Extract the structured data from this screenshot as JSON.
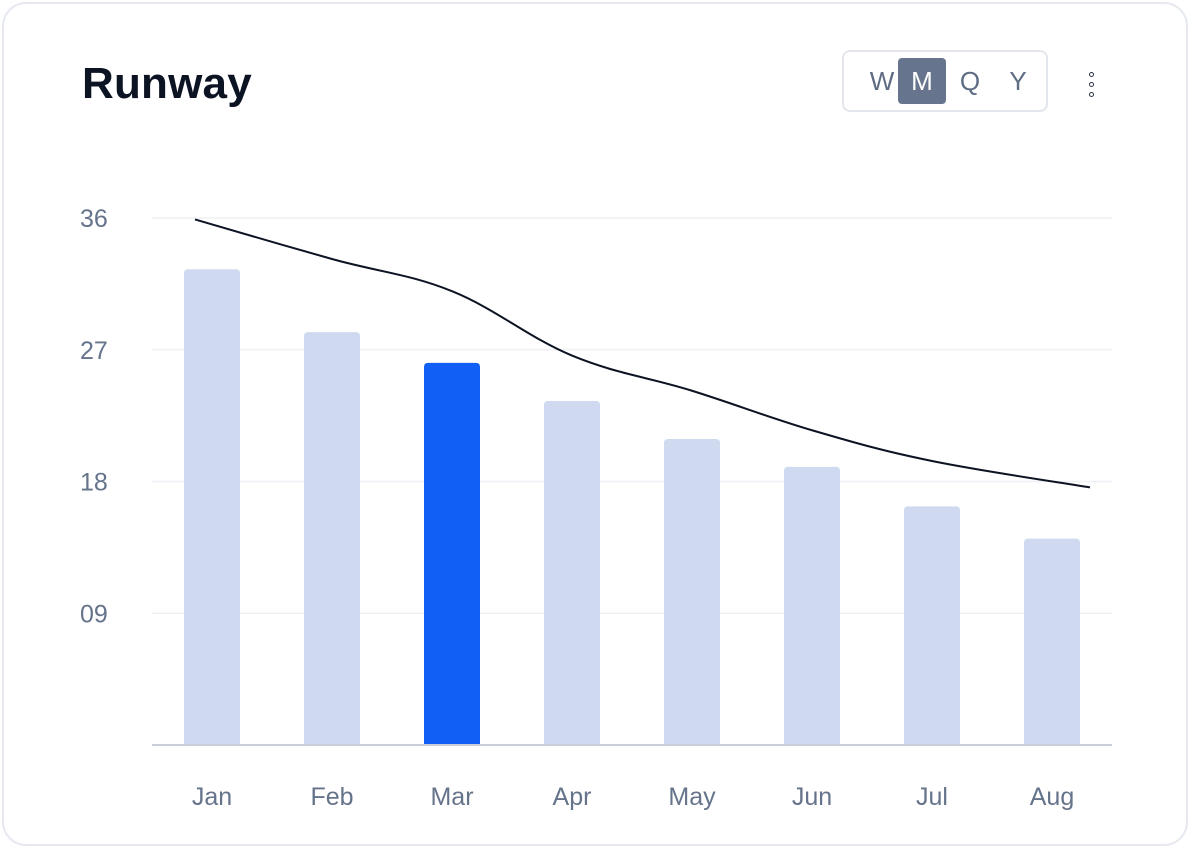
{
  "header": {
    "title": "Runway",
    "periods": [
      "W",
      "M",
      "Q",
      "Y"
    ],
    "active_period": "M",
    "menu_icon": "more-vertical-icon"
  },
  "colors": {
    "bar": "#cfdaf1",
    "bar_highlight": "#125ff5",
    "line": "#0c1322",
    "grid": "#eef0f4",
    "axis": "#c9ced8",
    "tick_text": "#65738b"
  },
  "chart_data": {
    "type": "bar",
    "categories": [
      "Jan",
      "Feb",
      "Mar",
      "Apr",
      "May",
      "Jun",
      "Jul",
      "Aug"
    ],
    "series": [
      {
        "values": [
          32.5,
          28.2,
          26.1,
          23.5,
          20.9,
          19.0,
          16.3,
          14.1
        ]
      }
    ],
    "line_series": {
      "values": [
        35.9,
        33.2,
        31.0,
        26.6,
        24.2,
        21.5,
        19.4,
        17.6
      ]
    },
    "highlight_category": "Mar",
    "y_ticks": [
      "36",
      "27",
      "18",
      "09"
    ],
    "ylim": [
      0,
      36
    ],
    "grid": true,
    "title": "Runway"
  }
}
